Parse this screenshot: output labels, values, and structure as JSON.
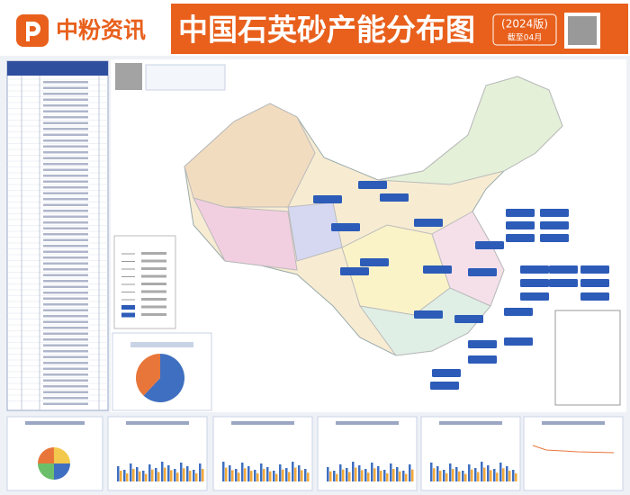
{
  "header": {
    "brand": "中粉资讯",
    "title": "中国石英砂产能分布图",
    "edition": "(2024版)",
    "date": "截至04月"
  },
  "pie": {
    "values": [
      62,
      38
    ],
    "colors": [
      "#3f6fc0",
      "#e8763a"
    ]
  }
}
